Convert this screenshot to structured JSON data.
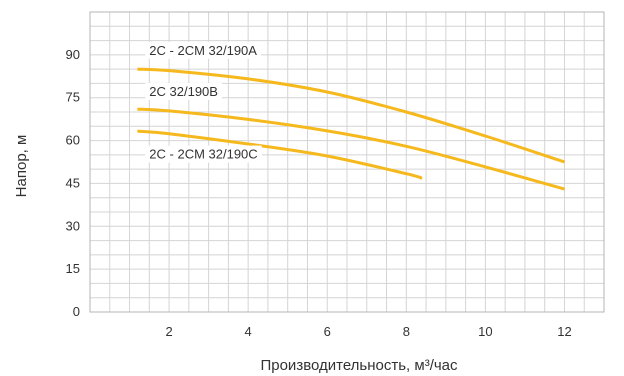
{
  "chart_data": {
    "type": "line",
    "xlabel": "Производительность, м³/час",
    "ylabel": "Напор, м",
    "xlim": [
      0,
      13
    ],
    "ylim": [
      0,
      105
    ],
    "x_ticks": [
      2,
      4,
      6,
      8,
      10,
      12
    ],
    "y_ticks": [
      0,
      15,
      30,
      45,
      60,
      75,
      90
    ],
    "grid": true,
    "line_color": "#f5b81d",
    "series": [
      {
        "name": "2C - 2CM 32/190A",
        "x": [
          1.2,
          2,
          4,
          6,
          8,
          10,
          12
        ],
        "y": [
          85,
          84.5,
          81.6,
          77,
          70,
          61.6,
          52.5
        ]
      },
      {
        "name": "2C 32/190B",
        "x": [
          1.2,
          2,
          4,
          6,
          8,
          10,
          12
        ],
        "y": [
          71,
          70.4,
          67.4,
          63.4,
          58,
          50.8,
          43
        ]
      },
      {
        "name": "2C - 2CM 32/190C",
        "x": [
          1.2,
          2,
          4,
          6,
          8,
          8.4
        ],
        "y": [
          63.3,
          62.4,
          58.8,
          54.6,
          48.4,
          46.8
        ]
      }
    ]
  }
}
